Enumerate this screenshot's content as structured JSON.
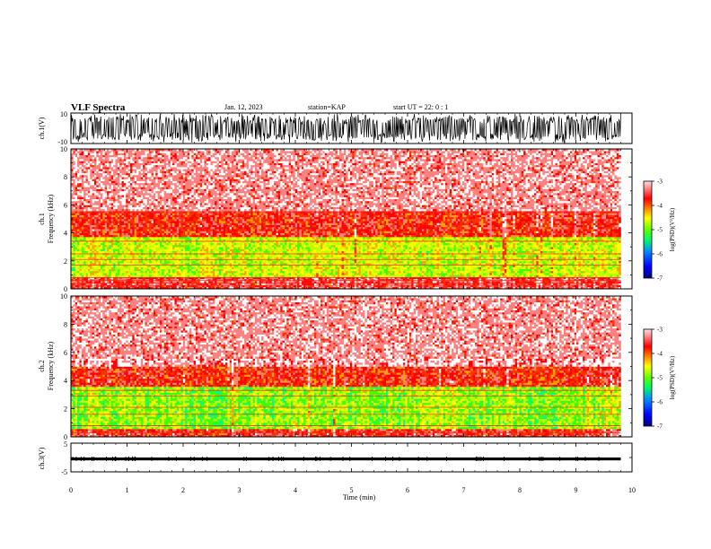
{
  "header": {
    "title": "VLF Spectra",
    "date": "Jan. 12, 2023",
    "station": "station=KAP",
    "start": "start UT =  22: 0  : 1"
  },
  "chart_data": [
    {
      "id": "ch1_waveform",
      "type": "line",
      "ylabel": "ch.1(V)",
      "ylim": [
        -10,
        10
      ],
      "yticks": [
        "10",
        "-10"
      ],
      "xlim": [
        0,
        10
      ],
      "description_values": {
        "amplitude_range": [
          -10,
          10
        ],
        "data_end_min": 9.8
      }
    },
    {
      "id": "ch1_spectrogram",
      "type": "heatmap",
      "ylabel": "ch.1\nFrequency (kHz)",
      "ylim": [
        0,
        10
      ],
      "yticks": [
        "0",
        "2",
        "4",
        "6",
        "8",
        "10"
      ],
      "xlim": [
        0,
        10
      ],
      "data_end_min": 9.8,
      "bands": [
        {
          "freq_khz": [
            0,
            0.8
          ],
          "logpsd": -3.6
        },
        {
          "freq_khz": [
            0.8,
            3.7
          ],
          "logpsd": -4.9
        },
        {
          "freq_khz": [
            3.7,
            5.5
          ],
          "logpsd": -3.8
        },
        {
          "freq_khz": [
            5.5,
            10
          ],
          "logpsd": -3.2
        }
      ],
      "lines_khz": [
        0.2,
        0.4,
        0.6,
        0.8,
        1.7,
        2.1,
        2.5,
        3.4,
        5.5
      ],
      "colorbar": {
        "label": "log(PSD)(V²/Hz)",
        "range": [
          -7,
          -3
        ],
        "ticks": [
          "-3",
          "-4",
          "-5",
          "-6",
          "-7"
        ]
      }
    },
    {
      "id": "ch2_spectrogram",
      "type": "heatmap",
      "ylabel": "ch.2\nFrequency (kHz)",
      "ylim": [
        0,
        10
      ],
      "yticks": [
        "0",
        "2",
        "4",
        "6",
        "8",
        "10"
      ],
      "xlim": [
        0,
        10
      ],
      "data_end_min": 9.8,
      "bands": [
        {
          "freq_khz": [
            0,
            0.5
          ],
          "logpsd": -3.7
        },
        {
          "freq_khz": [
            0.5,
            3.5
          ],
          "logpsd": -5.1
        },
        {
          "freq_khz": [
            3.5,
            5.0
          ],
          "logpsd": -3.8
        },
        {
          "freq_khz": [
            5.0,
            10
          ],
          "logpsd": -3.2
        }
      ],
      "lines_khz": [
        0.3,
        0.8,
        1.6,
        2.1,
        2.9,
        3.3
      ],
      "colorbar": {
        "label": "log(PSD)(V²/Hz)",
        "range": [
          -7,
          -3
        ],
        "ticks": [
          "-3",
          "-4",
          "-5",
          "-6",
          "-7"
        ]
      }
    },
    {
      "id": "ch3_waveform",
      "type": "line",
      "ylabel": "ch.3(V)",
      "ylim": [
        -5,
        5
      ],
      "yticks": [
        "5",
        "-5"
      ],
      "xlim": [
        0,
        10
      ],
      "description_values": {
        "amplitude_range": [
          -1,
          0
        ],
        "data_end_min": 9.8
      }
    }
  ],
  "xaxis": {
    "label": "Time (min)",
    "ticks": [
      "0",
      "1",
      "2",
      "3",
      "4",
      "5",
      "6",
      "7",
      "8",
      "9",
      "10"
    ]
  },
  "colors": {
    "colormap": [
      "#0000a0",
      "#0000ff",
      "#0080ff",
      "#00c0ff",
      "#00ff80",
      "#40ff00",
      "#c0ff00",
      "#ffff00",
      "#ffa000",
      "#ff3000",
      "#ff0000",
      "#ff8080",
      "#ffffff"
    ],
    "trace": "#000000"
  }
}
